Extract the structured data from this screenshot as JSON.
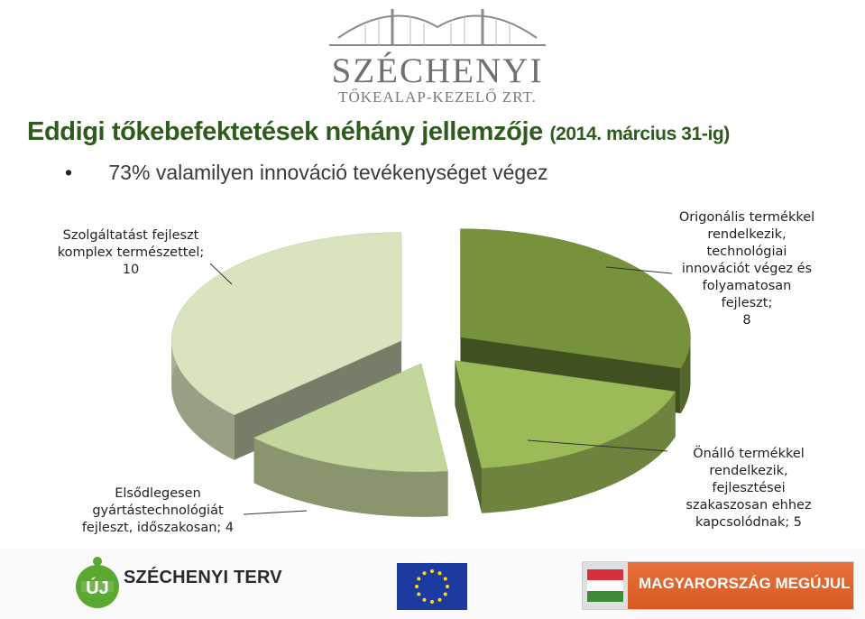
{
  "logo": {
    "name": "SZÉCHENYI",
    "subtitle": "TŐKEALAP-KEZELŐ ZRT."
  },
  "heading": {
    "title": "Eddigi tőkebefektetések néhány jellemzője",
    "date": "(2014. március 31-ig)"
  },
  "bullet": {
    "marker": "•",
    "text": "73% valamilyen innováció tevékenységet végez"
  },
  "chart_data": {
    "type": "pie",
    "style": "3d-exploded",
    "categories": [
      "Origonális termékkel rendelkezik, technológiai innovációt végez és folyamatosan fejleszt",
      "Önálló termékkel rendelkezik, fejlesztései szakaszosan ehhez kapcsolódnak",
      "Elsődlegesen gyártástechnológiát fejleszt, időszakosan",
      "Szolgáltatást fejleszt komplex természettel"
    ],
    "values": [
      8,
      5,
      4,
      10
    ],
    "colors": [
      "#77923c",
      "#9bbb59",
      "#c3d69b",
      "#d7e4bd"
    ],
    "labels": [
      [
        "Origonális termékkel",
        "rendelkezik,",
        "technológiai",
        "innovációt végez és",
        "folyamatosan fejleszt;",
        "8"
      ],
      [
        "Önálló termékkel",
        "rendelkezik,",
        "fejlesztései",
        "szakaszosan ehhez",
        "kapcsolódnak; 5"
      ],
      [
        "Elsődlegesen",
        "gyártástechnológiát",
        "fejleszt, időszakosan; 4"
      ],
      [
        "Szolgáltatást fejleszt",
        "komplex természettel;",
        "10"
      ]
    ]
  },
  "footer": {
    "szechenyi_terv_badge": "ÚJ",
    "szechenyi_terv": "SZÉCHENYI TERV",
    "magyarorszag": "MAGYARORSZÁG MEGÚJUL"
  }
}
